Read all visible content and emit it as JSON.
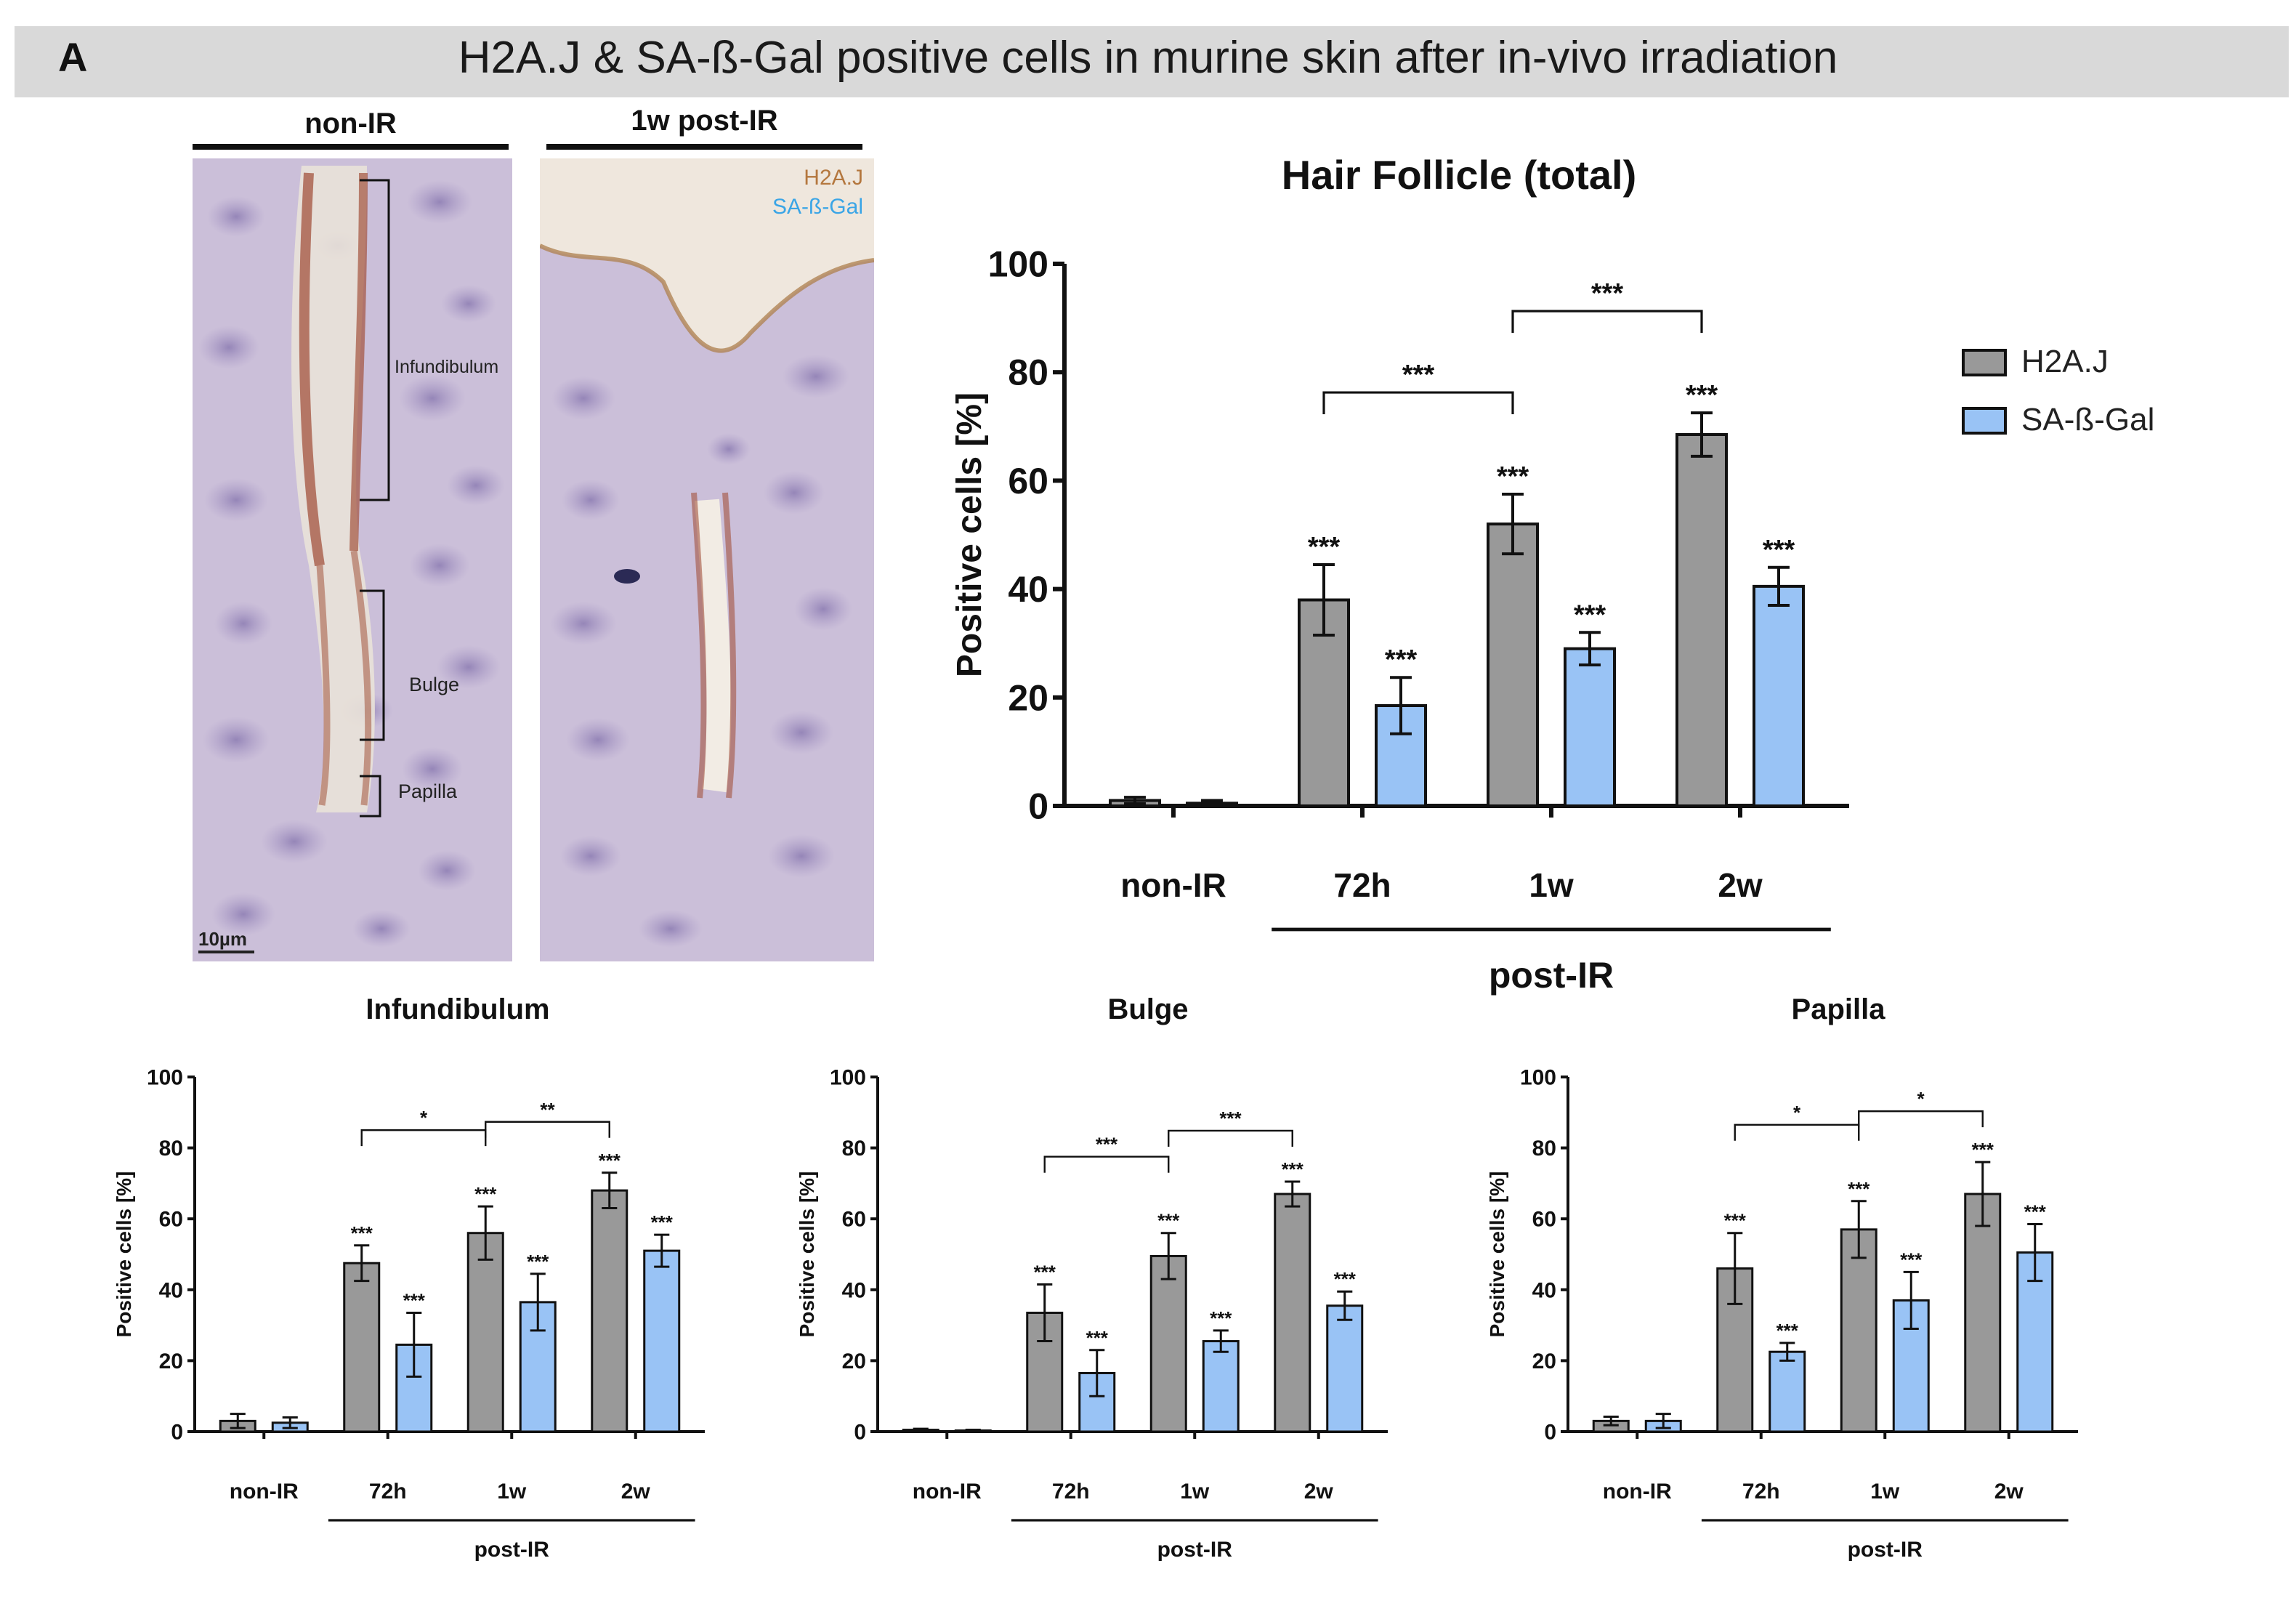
{
  "panel": {
    "letter": "A",
    "title": "H2A.J & SA-ß-Gal positive cells in murine skin after in-vivo irradiation"
  },
  "micrographs": {
    "left_label": "non-IR",
    "right_label": "1w post-IR",
    "regions": [
      "Infundibulum",
      "Bulge",
      "Papilla"
    ],
    "legend": [
      "H2A.J",
      "SA-ß-Gal"
    ],
    "scale_bar": "10µm",
    "colors": {
      "h2aj": "#b4773e",
      "sagal": "#3aa5e6",
      "tissue": "#c8bcd8"
    }
  },
  "legend": {
    "items": [
      "H2A.J",
      "SA-ß-Gal"
    ],
    "colors": [
      "#999999",
      "#99c3f5"
    ]
  },
  "chart_data": [
    {
      "type": "bar",
      "title": "Hair Follicle (total)",
      "xlabel": "",
      "ylabel": "Positive cells [%]",
      "ylim": [
        0,
        100
      ],
      "yticks": [
        "0",
        "20",
        "40",
        "60",
        "80",
        "100"
      ],
      "categories": [
        "non-IR",
        "72h",
        "1w",
        "2w"
      ],
      "group_label": "post-IR",
      "series": [
        {
          "name": "H2A.J",
          "color": "#999999",
          "values": [
            1,
            38,
            52,
            68.5
          ],
          "errors": [
            0.6,
            6.5,
            5.5,
            4
          ],
          "sig": [
            "",
            "***",
            "***",
            "***"
          ]
        },
        {
          "name": "SA-ß-Gal",
          "color": "#99c3f5",
          "values": [
            0.5,
            18.5,
            29,
            40.5
          ],
          "errors": [
            0.5,
            5.2,
            3,
            3.5
          ],
          "sig": [
            "",
            "***",
            "***",
            "***"
          ]
        }
      ],
      "brackets": [
        {
          "from": "72h",
          "to": "1w",
          "label": "***"
        },
        {
          "from": "1w",
          "to": "2w",
          "label": "***"
        }
      ]
    },
    {
      "type": "bar",
      "title": "Infundibulum",
      "xlabel": "",
      "ylabel": "Positive cells [%]",
      "ylim": [
        0,
        100
      ],
      "yticks": [
        "0",
        "20",
        "40",
        "60",
        "80",
        "100"
      ],
      "categories": [
        "non-IR",
        "72h",
        "1w",
        "2w"
      ],
      "group_label": "post-IR",
      "series": [
        {
          "name": "H2A.J",
          "color": "#999999",
          "values": [
            3,
            47.5,
            56,
            68
          ],
          "errors": [
            2,
            5,
            7.5,
            5
          ],
          "sig": [
            "",
            "***",
            "***",
            "***"
          ]
        },
        {
          "name": "SA-ß-Gal",
          "color": "#99c3f5",
          "values": [
            2.5,
            24.5,
            36.5,
            51
          ],
          "errors": [
            1.5,
            9,
            8,
            4.5
          ],
          "sig": [
            "",
            "***",
            "***",
            "***"
          ]
        }
      ],
      "brackets": [
        {
          "from": "72h",
          "to": "1w",
          "label": "*"
        },
        {
          "from": "1w",
          "to": "2w",
          "label": "**"
        }
      ]
    },
    {
      "type": "bar",
      "title": "Bulge",
      "xlabel": "",
      "ylabel": "Positive cells [%]",
      "ylim": [
        0,
        100
      ],
      "yticks": [
        "0",
        "20",
        "40",
        "60",
        "80",
        "100"
      ],
      "categories": [
        "non-IR",
        "72h",
        "1w",
        "2w"
      ],
      "group_label": "post-IR",
      "series": [
        {
          "name": "H2A.J",
          "color": "#999999",
          "values": [
            0.5,
            33.5,
            49.5,
            67
          ],
          "errors": [
            0.3,
            8,
            6.5,
            3.5
          ],
          "sig": [
            "",
            "***",
            "***",
            "***"
          ]
        },
        {
          "name": "SA-ß-Gal",
          "color": "#99c3f5",
          "values": [
            0.3,
            16.5,
            25.5,
            35.5
          ],
          "errors": [
            0.2,
            6.5,
            3,
            4
          ],
          "sig": [
            "",
            "***",
            "***",
            "***"
          ]
        }
      ],
      "brackets": [
        {
          "from": "72h",
          "to": "1w",
          "label": "***"
        },
        {
          "from": "1w",
          "to": "2w",
          "label": "***"
        }
      ]
    },
    {
      "type": "bar",
      "title": "Papilla",
      "xlabel": "",
      "ylabel": "Positive cells [%]",
      "ylim": [
        0,
        100
      ],
      "yticks": [
        "0",
        "20",
        "40",
        "60",
        "80",
        "100"
      ],
      "categories": [
        "non-IR",
        "72h",
        "1w",
        "2w"
      ],
      "group_label": "post-IR",
      "series": [
        {
          "name": "H2A.J",
          "color": "#999999",
          "values": [
            3,
            46,
            57,
            67
          ],
          "errors": [
            1.2,
            10,
            8,
            9
          ],
          "sig": [
            "",
            "***",
            "***",
            "***"
          ]
        },
        {
          "name": "SA-ß-Gal",
          "color": "#99c3f5",
          "values": [
            3,
            22.5,
            37,
            50.5
          ],
          "errors": [
            2,
            2.5,
            8,
            8
          ],
          "sig": [
            "",
            "***",
            "***",
            "***"
          ]
        }
      ],
      "brackets": [
        {
          "from": "72h",
          "to": "1w",
          "label": "*"
        },
        {
          "from": "1w",
          "to": "2w",
          "label": "*"
        }
      ]
    }
  ]
}
